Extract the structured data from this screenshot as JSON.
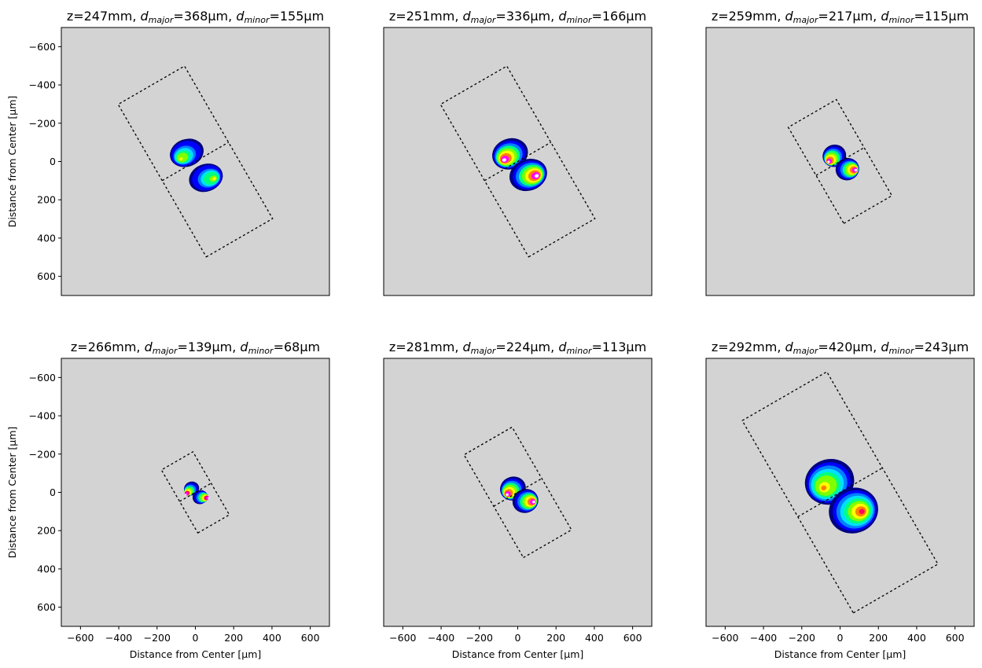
{
  "chart_data": [
    {
      "type": "heatmap",
      "title_parts": {
        "z": "z=247mm",
        "major_sym": "d",
        "major_sub": "major",
        "major_val": "=368μm",
        "minor_sym": "d",
        "minor_sub": "minor",
        "minor_val": "=155μm"
      },
      "xlabel": "",
      "ylabel": "Distance from Center [μm]",
      "xlim": [
        -700,
        700
      ],
      "ylim": [
        700,
        -700
      ],
      "show_xticks": false,
      "show_yticks": true,
      "rect_center": [
        0,
        0
      ],
      "rect_half_length": 460,
      "rect_half_width": 200,
      "major_angle_deg": 60,
      "lobes": [
        {
          "x": -45,
          "y": -45,
          "rx": 90,
          "ry": 72,
          "peak": 0.58
        },
        {
          "x": 55,
          "y": 85,
          "rx": 90,
          "ry": 72,
          "peak": 0.55
        }
      ]
    },
    {
      "type": "heatmap",
      "title_parts": {
        "z": "z=251mm",
        "major_sym": "d",
        "major_sub": "major",
        "major_val": "=336μm",
        "minor_sym": "d",
        "minor_sub": "minor",
        "minor_val": "=166μm"
      },
      "xlabel": "",
      "ylabel": "",
      "xlim": [
        -700,
        700
      ],
      "ylim": [
        700,
        -700
      ],
      "show_xticks": false,
      "show_yticks": false,
      "rect_center": [
        0,
        0
      ],
      "rect_half_length": 460,
      "rect_half_width": 200,
      "major_angle_deg": 60,
      "lobes": [
        {
          "x": -40,
          "y": -40,
          "rx": 95,
          "ry": 80,
          "peak": 0.9
        },
        {
          "x": 55,
          "y": 70,
          "rx": 100,
          "ry": 82,
          "peak": 0.9
        }
      ]
    },
    {
      "type": "heatmap",
      "title_parts": {
        "z": "z=259mm",
        "major_sym": "d",
        "major_sub": "major",
        "major_val": "=217μm",
        "minor_sym": "d",
        "minor_sub": "minor",
        "minor_val": "=115μm"
      },
      "xlabel": "",
      "ylabel": "",
      "xlim": [
        -700,
        700
      ],
      "ylim": [
        700,
        -700
      ],
      "show_xticks": false,
      "show_yticks": false,
      "rect_center": [
        0,
        0
      ],
      "rect_half_length": 290,
      "rect_half_width": 145,
      "major_angle_deg": 60,
      "lobes": [
        {
          "x": -30,
          "y": -30,
          "rx": 62,
          "ry": 58,
          "peak": 0.92
        },
        {
          "x": 38,
          "y": 40,
          "rx": 62,
          "ry": 58,
          "peak": 0.92
        }
      ]
    },
    {
      "type": "heatmap",
      "title_parts": {
        "z": "z=266mm",
        "major_sym": "d",
        "major_sub": "major",
        "major_val": "=139μm",
        "minor_sym": "d",
        "minor_sub": "minor",
        "minor_val": "=68μm"
      },
      "xlabel": "Distance from Center [μm]",
      "ylabel": "Distance from Center [μm]",
      "xlim": [
        -700,
        700
      ],
      "ylim": [
        700,
        -700
      ],
      "show_xticks": true,
      "show_yticks": true,
      "rect_center": [
        0,
        0
      ],
      "rect_half_length": 190,
      "rect_half_width": 95,
      "major_angle_deg": 60,
      "lobes": [
        {
          "x": -20,
          "y": -20,
          "rx": 40,
          "ry": 36,
          "peak": 0.95
        },
        {
          "x": 25,
          "y": 25,
          "rx": 40,
          "ry": 36,
          "peak": 0.95
        }
      ]
    },
    {
      "type": "heatmap",
      "title_parts": {
        "z": "z=281mm",
        "major_sym": "d",
        "major_sub": "major",
        "major_val": "=224μm",
        "minor_sym": "d",
        "minor_sub": "minor",
        "minor_val": "=113μm"
      },
      "xlabel": "Distance from Center [μm]",
      "ylabel": "",
      "xlim": [
        -700,
        700
      ],
      "ylim": [
        700,
        -700
      ],
      "show_xticks": true,
      "show_yticks": false,
      "rect_center": [
        0,
        0
      ],
      "rect_half_length": 310,
      "rect_half_width": 145,
      "major_angle_deg": 60,
      "lobes": [
        {
          "x": -25,
          "y": -20,
          "rx": 68,
          "ry": 62,
          "peak": 0.9
        },
        {
          "x": 40,
          "y": 45,
          "rx": 68,
          "ry": 62,
          "peak": 0.9
        }
      ]
    },
    {
      "type": "heatmap",
      "title_parts": {
        "z": "z=292mm",
        "major_sym": "d",
        "major_sub": "major",
        "major_val": "=420μm",
        "minor_sym": "d",
        "minor_sub": "minor",
        "minor_val": "=243μm"
      },
      "xlabel": "Distance from Center [μm]",
      "ylabel": "",
      "xlim": [
        -700,
        700
      ],
      "ylim": [
        700,
        -700
      ],
      "show_xticks": true,
      "show_yticks": false,
      "rect_center": [
        0,
        0
      ],
      "rect_half_length": 580,
      "rect_half_width": 255,
      "major_angle_deg": 60,
      "lobes": [
        {
          "x": -55,
          "y": -55,
          "rx": 130,
          "ry": 118,
          "peak": 0.68
        },
        {
          "x": 70,
          "y": 95,
          "rx": 130,
          "ry": 118,
          "peak": 0.78
        }
      ]
    }
  ],
  "axis": {
    "ticks": [
      -600,
      -400,
      -200,
      0,
      200,
      400,
      600
    ],
    "tick_labels": [
      "−600",
      "−400",
      "−200",
      "0",
      "200",
      "400",
      "600"
    ],
    "background_color": "#d3d3d3",
    "colormap": [
      "#ffffff",
      "#000080",
      "#0000ff",
      "#0080ff",
      "#00e0ff",
      "#00ff80",
      "#80ff00",
      "#ffff00",
      "#ff8000",
      "#ff0060",
      "#ff00ff",
      "#ffffff"
    ]
  }
}
